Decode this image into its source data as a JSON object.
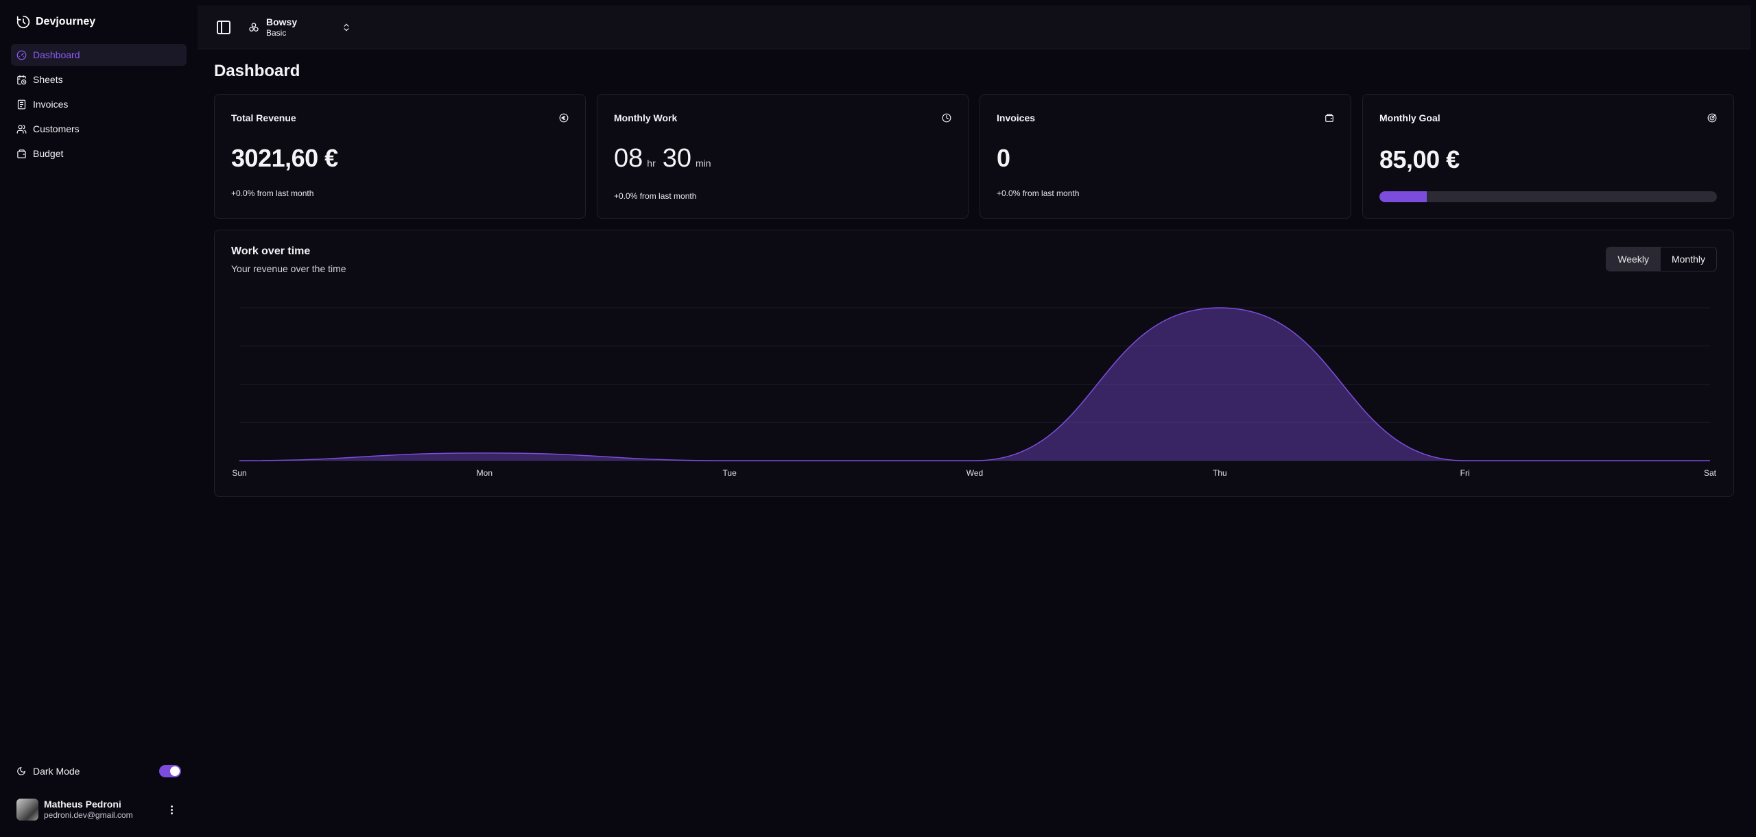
{
  "app": {
    "name": "Devjourney",
    "logo_icon": "clock-arrow-icon"
  },
  "sidebar": {
    "items": [
      {
        "label": "Dashboard",
        "icon": "gauge-icon",
        "active": true
      },
      {
        "label": "Sheets",
        "icon": "calendar-clock-icon",
        "active": false
      },
      {
        "label": "Invoices",
        "icon": "receipt-icon",
        "active": false
      },
      {
        "label": "Customers",
        "icon": "users-icon",
        "active": false
      },
      {
        "label": "Budget",
        "icon": "wallet-icon",
        "active": false
      }
    ],
    "dark_mode": {
      "label": "Dark Mode",
      "enabled": true
    },
    "user": {
      "name": "Matheus Pedroni",
      "email": "pedroni.dev@gmail.com"
    }
  },
  "header": {
    "team": {
      "name": "Bowsy",
      "plan": "Basic"
    }
  },
  "main": {
    "title": "Dashboard",
    "cards": {
      "revenue": {
        "title": "Total Revenue",
        "value": "3021,60 €",
        "sub": "+0.0% from last month",
        "icon": "euro-icon"
      },
      "work": {
        "title": "Monthly Work",
        "hours": "08",
        "hours_unit": "hr",
        "minutes": "30",
        "minutes_unit": "min",
        "sub": "+0.0% from last month",
        "icon": "clock-icon"
      },
      "invoices": {
        "title": "Invoices",
        "value": "0",
        "sub": "+0.0% from last month",
        "icon": "wallet-icon"
      },
      "goal": {
        "title": "Monthly Goal",
        "value": "85,00 €",
        "progress": 0.14,
        "icon": "target-icon"
      }
    },
    "chart_card": {
      "title": "Work over time",
      "subtitle": "Your revenue over the time",
      "toggle": {
        "weekly": "Weekly",
        "monthly": "Monthly",
        "selected": "weekly"
      }
    }
  },
  "chart_data": {
    "type": "area",
    "categories": [
      "Sun",
      "Mon",
      "Tue",
      "Wed",
      "Thu",
      "Fri",
      "Sat"
    ],
    "values": [
      0,
      0.05,
      0,
      0,
      1,
      0,
      0
    ],
    "ylim": [
      0,
      1
    ],
    "grid": true,
    "legend": "none",
    "color": "#7c4ddc"
  }
}
